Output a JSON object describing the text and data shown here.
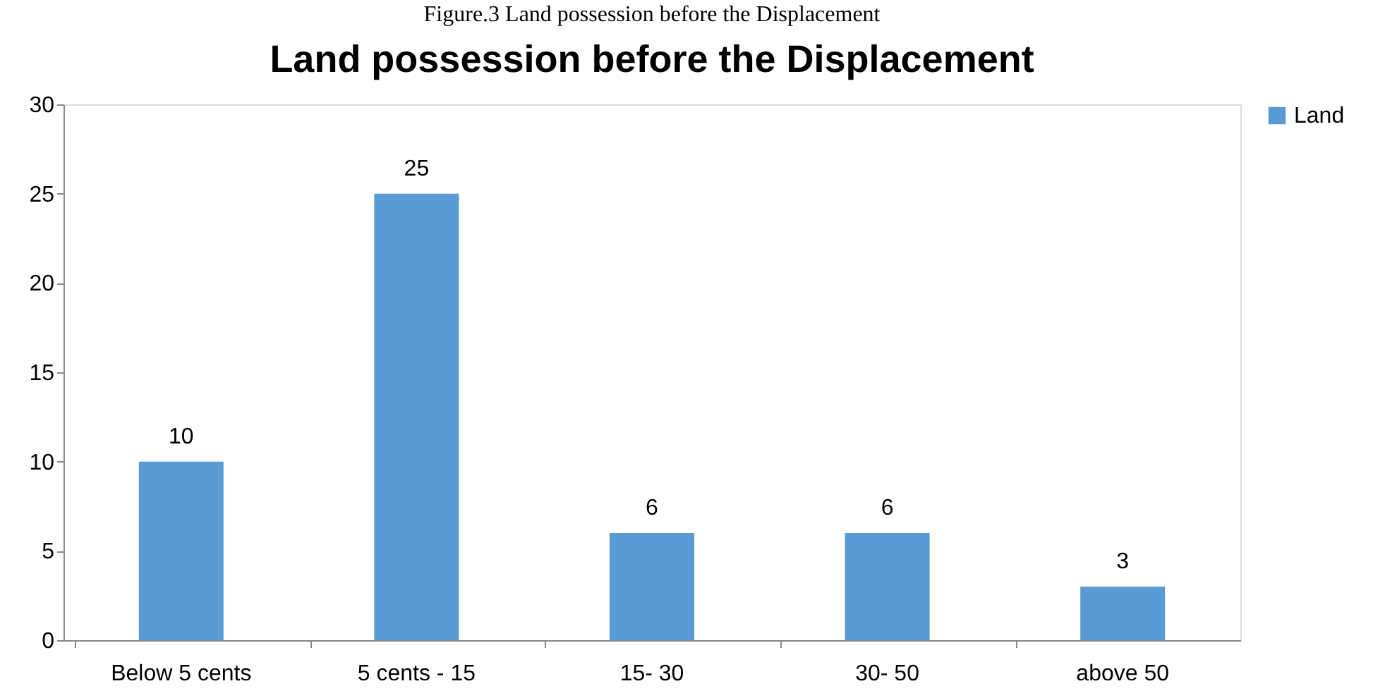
{
  "chart_data": {
    "type": "bar",
    "title": "Land possession before the Displacement",
    "annotations": [
      "Figure.3 Land possession before the Displacement"
    ],
    "categories": [
      "Below 5 cents",
      "5 cents - 15",
      "15- 30",
      "30- 50",
      "above 50"
    ],
    "series": [
      {
        "name": "Land",
        "color": "#5b9bd5",
        "values": [
          10,
          25,
          6,
          6,
          3
        ]
      }
    ],
    "ylim": [
      0,
      30
    ],
    "yticks": [
      0,
      5,
      10,
      15,
      20,
      25,
      30
    ],
    "data_labels": true,
    "grid": false,
    "legend": "right"
  }
}
